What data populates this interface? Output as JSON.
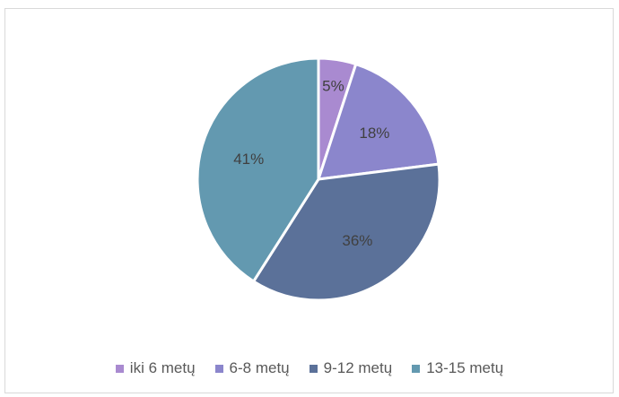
{
  "chart_data": {
    "type": "pie",
    "title": "",
    "categories": [
      "iki 6 metų",
      "6-8 metų",
      "9-12 metų",
      "13-15 metų"
    ],
    "values": [
      5,
      18,
      36,
      41
    ],
    "labels": [
      "5%",
      "18%",
      "36%",
      "41%"
    ],
    "colors": [
      "#a98ad0",
      "#8b86cc",
      "#5b7199",
      "#6399b0"
    ],
    "legend_position": "bottom",
    "start_angle_deg": 0,
    "direction": "clockwise"
  }
}
